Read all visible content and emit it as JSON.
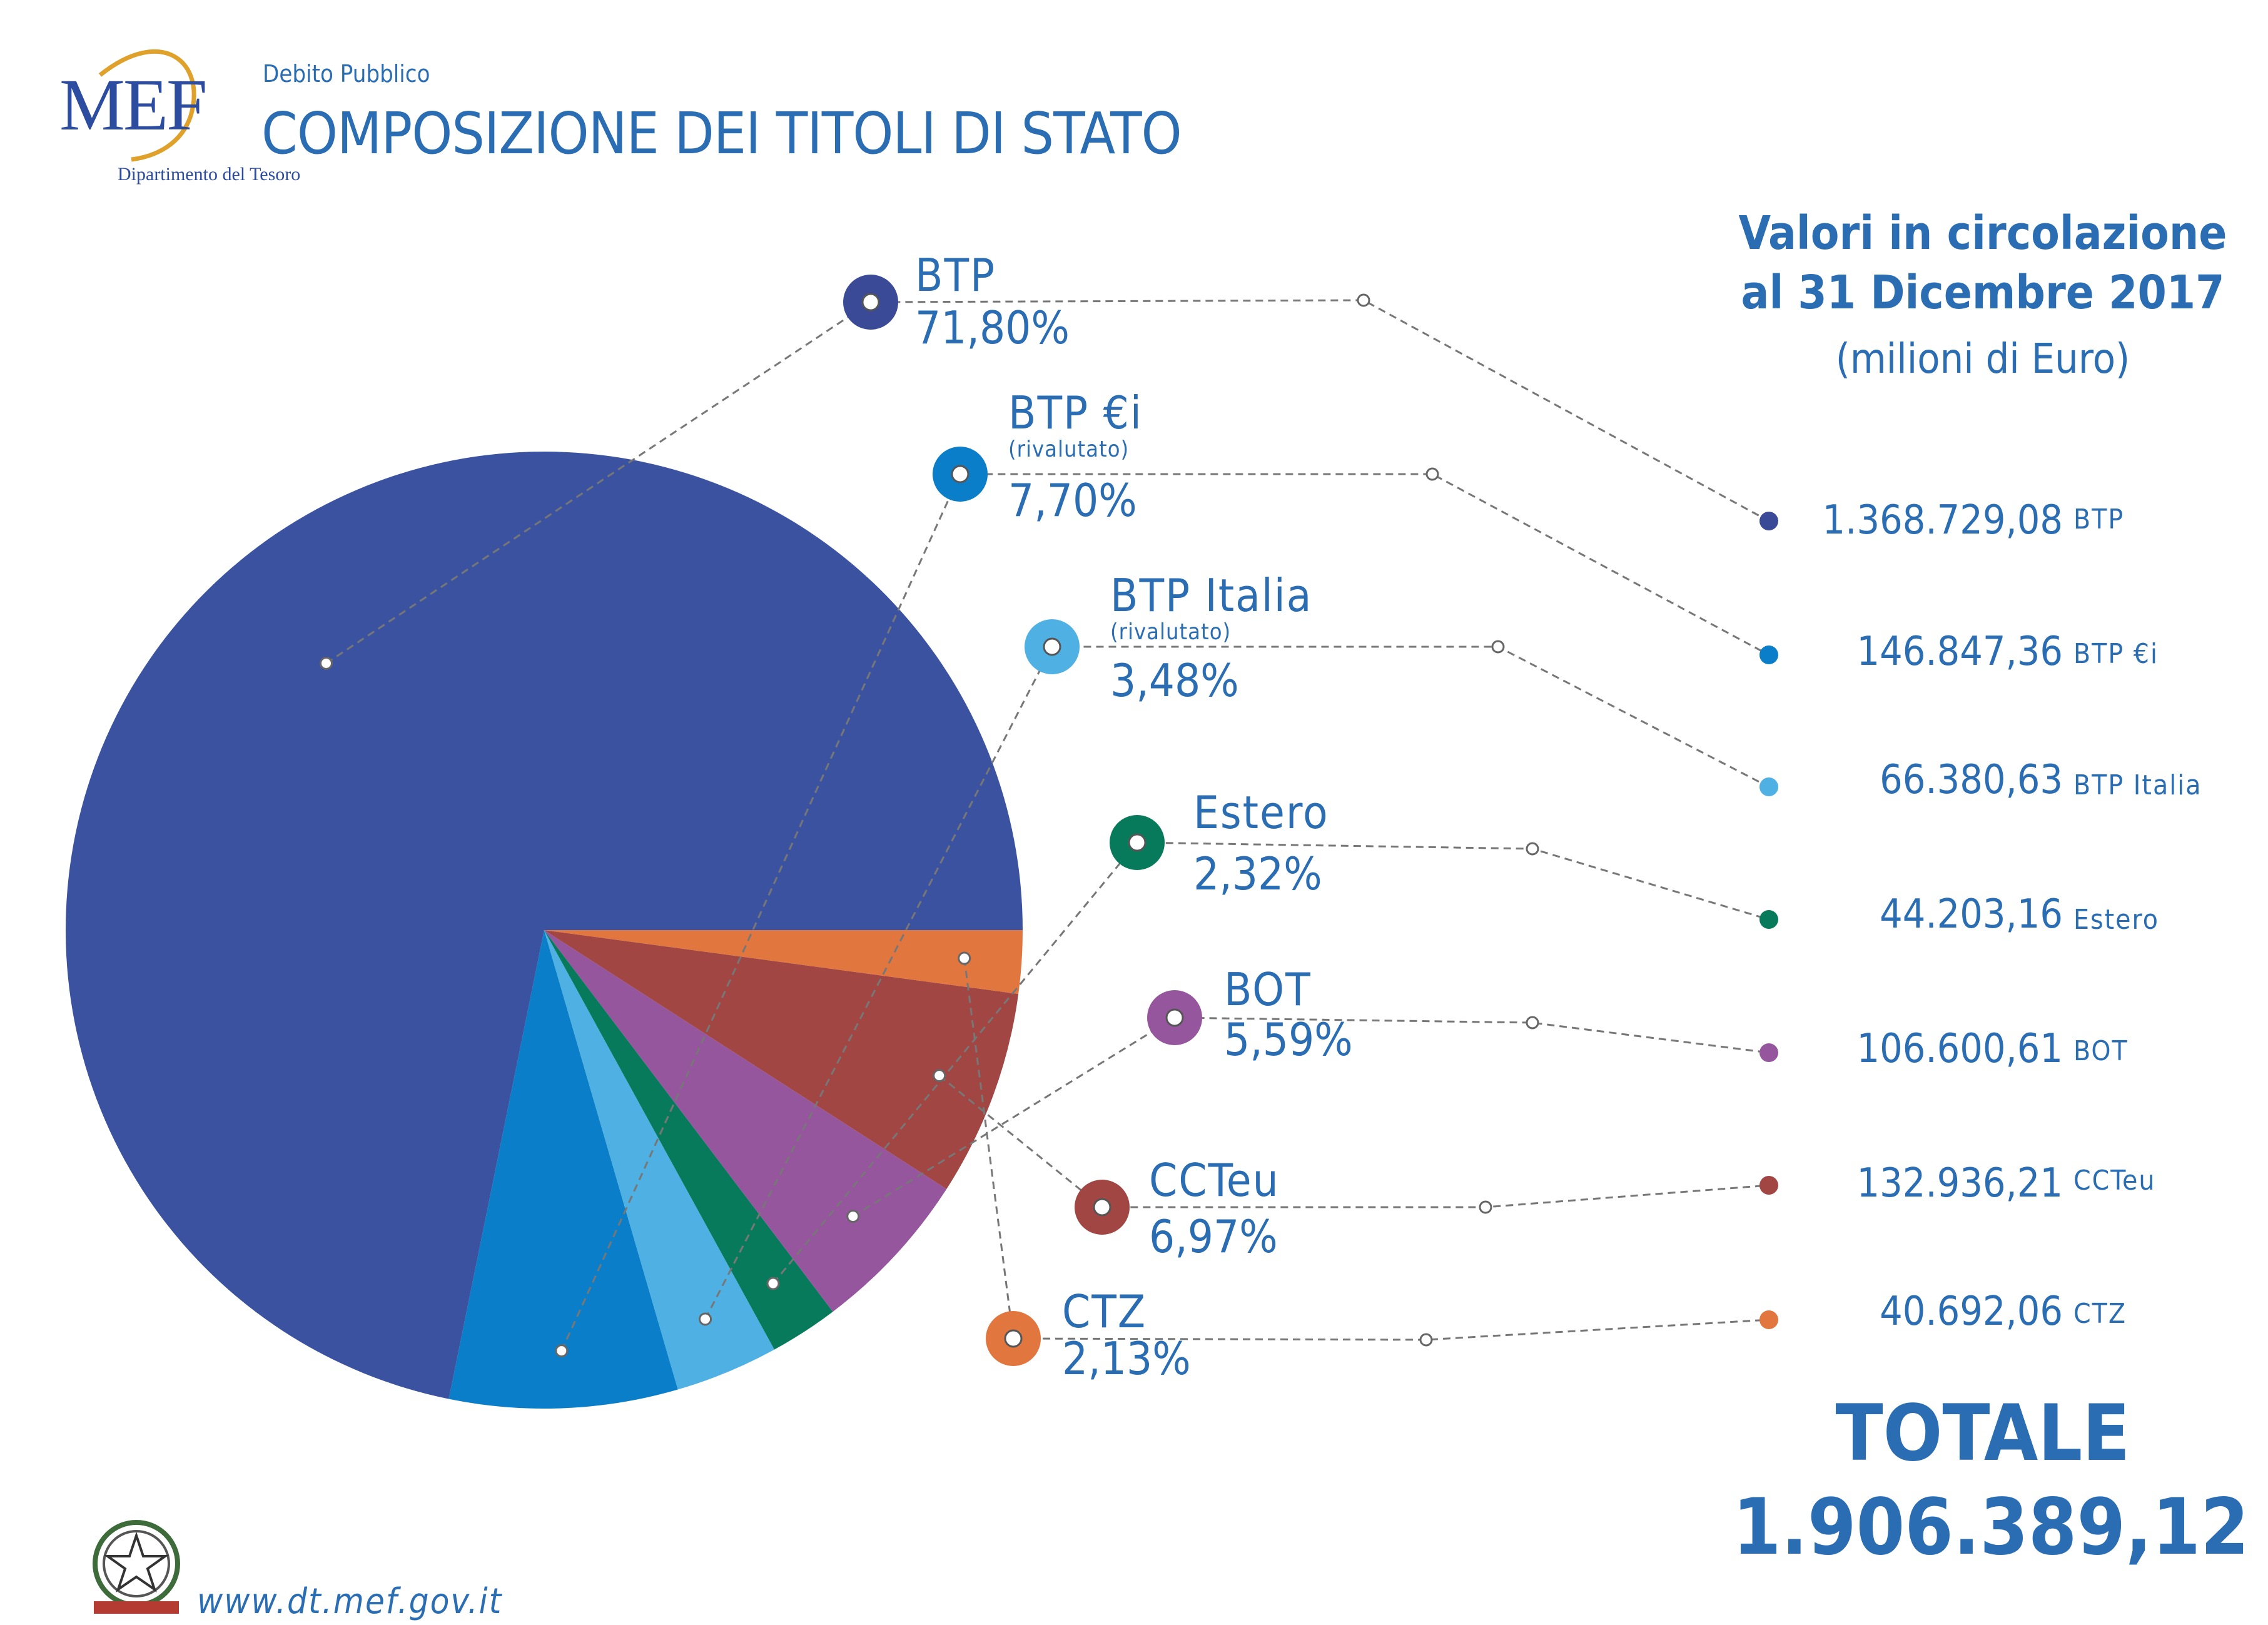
{
  "header": {
    "org_logo_text": "MEF",
    "org_department": "Dipartimento del Tesoro",
    "subtitle": "Debito Pubblico",
    "title": "COMPOSIZIONE DEI TITOLI DI STATO"
  },
  "side_panel": {
    "title_line1": "Valori in circolazione",
    "title_line2": "al 31 Dicembre 2017",
    "unit": "(milioni di Euro)",
    "total_label": "TOTALE",
    "total_value": "1.906.389,12"
  },
  "footer": {
    "url": "www.dt.mef.gov.it",
    "emblem_text": "REPUBBLICA ITALIANA"
  },
  "chart_data": {
    "type": "pie",
    "start_angle_deg": 0,
    "direction": "counterclockwise-from-3-oclock",
    "slices": [
      {
        "name": "BTP",
        "note": "",
        "percent": 71.8,
        "percent_label": "71,80%",
        "value": 1368729.08,
        "value_label": "1.368.729,08",
        "color": "#3a52a0",
        "dot_color": "#3a4a96"
      },
      {
        "name": "BTP €i",
        "note": "(rivalutato)",
        "percent": 7.7,
        "percent_label": "7,70%",
        "value": 146847.36,
        "value_label": "146.847,36",
        "color": "#0a7ec8",
        "dot_color": "#0a7ec8"
      },
      {
        "name": "BTP Italia",
        "note": "(rivalutato)",
        "percent": 3.48,
        "percent_label": "3,48%",
        "value": 66380.63,
        "value_label": "66.380,63",
        "color": "#4fb0e3",
        "dot_color": "#4fb0e3"
      },
      {
        "name": "Estero",
        "note": "",
        "percent": 2.32,
        "percent_label": "2,32%",
        "value": 44203.16,
        "value_label": "44.203,16",
        "color": "#077a5c",
        "dot_color": "#077a5c"
      },
      {
        "name": "BOT",
        "note": "",
        "percent": 5.59,
        "percent_label": "5,59%",
        "value": 106600.61,
        "value_label": "106.600,61",
        "color": "#96569e",
        "dot_color": "#96569e"
      },
      {
        "name": "CCTeu",
        "note": "",
        "percent": 6.97,
        "percent_label": "6,97%",
        "value": 132936.21,
        "value_label": "132.936,21",
        "color": "#a14642",
        "dot_color": "#a14642"
      },
      {
        "name": "CTZ",
        "note": "",
        "percent": 2.13,
        "percent_label": "2,13%",
        "value": 40692.06,
        "value_label": "40.692,06",
        "color": "#e1763f",
        "dot_color": "#e1763f"
      }
    ]
  }
}
